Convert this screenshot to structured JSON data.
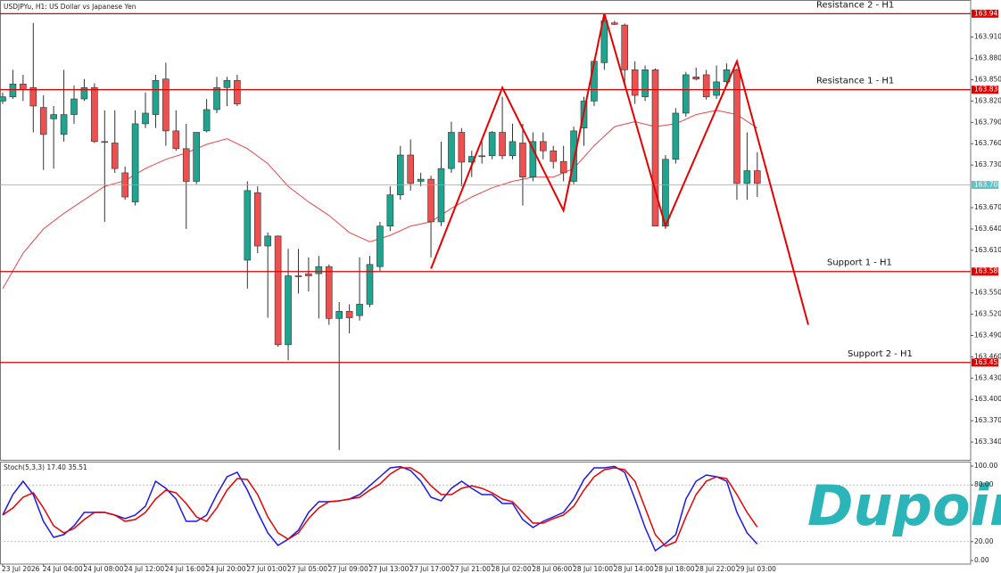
{
  "chart_data": [
    {
      "type": "candlestick",
      "title": "USDJPYu, H1:  US Dollar vs Japanese Yen",
      "categories": [
        "23 Jul 2026",
        null,
        null,
        null,
        "24 Jul 04:00",
        null,
        null,
        null,
        "24 Jul 08:00",
        null,
        null,
        null,
        "24 Jul 12:00",
        null,
        null,
        null,
        "24 Jul 16:00",
        null,
        null,
        null,
        "24 Jul 20:00",
        null,
        null,
        null,
        "27 Jul 01:00",
        null,
        null,
        null,
        "27 Jul 05:00",
        null,
        null,
        null,
        "27 Jul 09:00",
        null,
        null,
        null,
        "27 Jul 13:00",
        null,
        null,
        null,
        "27 Jul 17:00",
        null,
        null,
        null,
        "27 Jul 21:00",
        null,
        null,
        null,
        "28 Jul 02:00",
        null,
        null,
        null,
        "28 Jul 06:00",
        null,
        null,
        null,
        "28 Jul 10:00",
        null,
        null,
        null,
        "28 Jul 14:00",
        null,
        null,
        null,
        "28 Jul 18:00",
        null,
        null,
        null,
        "28 Jul 22:00",
        null,
        null,
        null,
        "29 Jul 03:00",
        null,
        null
      ],
      "open": [
        163.82,
        163.826,
        163.844,
        163.839,
        163.811,
        163.795,
        163.773,
        163.801,
        163.823,
        163.839,
        163.763,
        163.761,
        163.719,
        163.678,
        163.788,
        163.801,
        163.851,
        163.778,
        163.753,
        163.707,
        163.778,
        163.808,
        163.839,
        163.849,
        163.596,
        163.691,
        163.616,
        163.63,
        163.477,
        163.574,
        163.577,
        163.577,
        163.587,
        163.514,
        163.524,
        163.518,
        163.534,
        163.587,
        163.644,
        163.688,
        163.744,
        163.707,
        163.71,
        163.65,
        163.725,
        163.776,
        163.734,
        163.743,
        163.743,
        163.776,
        163.743,
        163.761,
        163.713,
        163.763,
        163.75,
        163.735,
        163.707,
        163.782,
        163.82,
        163.874,
        163.93,
        163.927,
        163.864,
        163.826,
        163.864,
        163.644,
        163.738,
        163.803,
        163.854,
        163.857,
        163.828,
        163.847,
        163.864,
        163.704,
        163.722
      ],
      "high": [
        163.832,
        163.864,
        163.857,
        163.93,
        163.828,
        163.813,
        163.864,
        163.842,
        163.851,
        163.845,
        163.807,
        163.807,
        163.728,
        163.807,
        163.832,
        163.857,
        163.874,
        163.807,
        163.788,
        163.776,
        163.823,
        163.854,
        163.854,
        163.857,
        163.707,
        163.7,
        163.635,
        163.631,
        163.612,
        163.612,
        163.6,
        163.602,
        163.59,
        163.537,
        163.534,
        163.6,
        163.602,
        163.65,
        163.7,
        163.757,
        163.766,
        163.719,
        163.715,
        163.763,
        163.791,
        163.782,
        163.75,
        163.763,
        163.778,
        163.826,
        163.788,
        163.788,
        163.776,
        163.776,
        163.757,
        163.757,
        163.784,
        163.826,
        163.879,
        163.939,
        163.933,
        163.929,
        163.876,
        163.87,
        163.866,
        163.744,
        163.81,
        163.861,
        163.867,
        163.864,
        163.87,
        163.873,
        163.866,
        163.776,
        163.748
      ],
      "low": [
        163.816,
        163.823,
        163.82,
        163.776,
        163.723,
        163.725,
        163.763,
        163.788,
        163.82,
        163.761,
        163.65,
        163.719,
        163.681,
        163.673,
        163.782,
        163.782,
        163.757,
        163.75,
        163.64,
        163.703,
        163.776,
        163.803,
        163.813,
        163.813,
        163.556,
        163.606,
        163.515,
        163.474,
        163.455,
        163.549,
        163.552,
        163.514,
        163.505,
        163.329,
        163.493,
        163.511,
        163.53,
        163.581,
        163.637,
        163.681,
        163.694,
        163.7,
        163.6,
        163.644,
        163.719,
        163.7,
        163.713,
        163.732,
        163.738,
        163.738,
        163.738,
        163.673,
        163.707,
        163.738,
        163.725,
        163.707,
        163.703,
        163.757,
        163.813,
        163.864,
        163.927,
        163.845,
        163.816,
        163.82,
        163.644,
        163.64,
        163.732,
        163.798,
        163.849,
        163.822,
        163.823,
        163.844,
        163.681,
        163.681,
        163.685
      ],
      "close": [
        163.826,
        163.844,
        163.836,
        163.813,
        163.773,
        163.801,
        163.801,
        163.823,
        163.839,
        163.763,
        163.762,
        163.725,
        163.685,
        163.788,
        163.803,
        163.849,
        163.778,
        163.753,
        163.707,
        163.776,
        163.808,
        163.839,
        163.849,
        163.816,
        163.694,
        163.616,
        163.63,
        163.477,
        163.574,
        163.573,
        163.574,
        163.587,
        163.514,
        163.524,
        163.515,
        163.534,
        163.59,
        163.644,
        163.688,
        163.744,
        163.704,
        163.71,
        163.65,
        163.725,
        163.776,
        163.734,
        163.742,
        163.742,
        163.776,
        163.743,
        163.763,
        163.713,
        163.763,
        163.75,
        163.735,
        163.719,
        163.778,
        163.82,
        163.876,
        163.933,
        163.928,
        163.864,
        163.828,
        163.864,
        163.644,
        163.738,
        163.803,
        163.857,
        163.851,
        163.826,
        163.847,
        163.864,
        163.704,
        163.722,
        163.704
      ],
      "up_color": "#1fa58f",
      "down_color": "#ee4f4f",
      "ylim": [
        163.315,
        163.961
      ],
      "yticks": [
        {
          "value": 163.34,
          "label": "163.340"
        },
        {
          "value": 163.37,
          "label": "163.370"
        },
        {
          "value": 163.4,
          "label": "163.400"
        },
        {
          "value": 163.43,
          "label": "163.430"
        },
        {
          "value": 163.46,
          "label": "163.460"
        },
        {
          "value": 163.49,
          "label": "163.490"
        },
        {
          "value": 163.52,
          "label": "163.520"
        },
        {
          "value": 163.55,
          "label": "163.550"
        },
        {
          "value": 163.61,
          "label": "163.610"
        },
        {
          "value": 163.64,
          "label": "163.640"
        },
        {
          "value": 163.67,
          "label": "163.670"
        },
        {
          "value": 163.73,
          "label": "163.730"
        },
        {
          "value": 163.76,
          "label": "163.760"
        },
        {
          "value": 163.79,
          "label": "163.790"
        },
        {
          "value": 163.82,
          "label": "163.820"
        },
        {
          "value": 163.85,
          "label": "163.850"
        },
        {
          "value": 163.88,
          "label": "163.880"
        },
        {
          "value": 163.91,
          "label": "163.910"
        }
      ],
      "ma": {
        "color": "#e8474a",
        "x": [
          0,
          2,
          4,
          6,
          8,
          10,
          12,
          14,
          16,
          18,
          20,
          22,
          24,
          26,
          28,
          30,
          32,
          34,
          36,
          38,
          40,
          42,
          44,
          46,
          48,
          50,
          52,
          54,
          56,
          58,
          60,
          62,
          64,
          66,
          68,
          70,
          72,
          74
        ],
        "values": [
          163.556,
          163.606,
          163.64,
          163.662,
          163.681,
          163.7,
          163.708,
          163.725,
          163.738,
          163.747,
          163.759,
          163.767,
          163.753,
          163.732,
          163.7,
          163.678,
          163.659,
          163.635,
          163.622,
          163.631,
          163.644,
          163.65,
          163.669,
          163.685,
          163.698,
          163.707,
          163.713,
          163.713,
          163.725,
          163.757,
          163.784,
          163.791,
          163.784,
          163.788,
          163.801,
          163.807,
          163.801,
          163.782
        ]
      },
      "zigzag": {
        "color": "#e80000",
        "x": [
          42,
          49,
          55,
          59,
          65,
          72,
          79
        ],
        "values": [
          163.584,
          163.839,
          163.666,
          163.943,
          163.644,
          163.876,
          163.505
        ]
      },
      "levels": [
        {
          "name": "Resistance 2 - H1",
          "value": 163.943,
          "color": "#e00000"
        },
        {
          "name": "Resistance 1 - H1",
          "value": 163.836,
          "color": "#e00000"
        },
        {
          "value": 163.702,
          "color": "#5ec4c8"
        },
        {
          "name": "Support 1 - H1",
          "value": 163.58,
          "value_label": "163.580",
          "color": "#e00000"
        },
        {
          "name": "Support 2 - H1",
          "value": 163.452,
          "color": "#e00000"
        }
      ]
    },
    {
      "type": "line",
      "title": "Stoch(5,3,3) 17.40 35.51",
      "ylim": [
        -3.8,
        103.8
      ],
      "yticks": [
        {
          "value": 100,
          "label": "100.00"
        },
        {
          "value": 80,
          "label": "80.00"
        },
        {
          "value": 20,
          "label": "20.00"
        },
        {
          "value": 0,
          "label": "0.00"
        }
      ],
      "levels": [
        80,
        20
      ],
      "series": [
        {
          "color": "#1a1ae6",
          "values": [
            48.1,
            69.8,
            84.0,
            69.8,
            41.5,
            24.5,
            27.4,
            36.8,
            50.9,
            50.9,
            50.9,
            48.1,
            44.3,
            48.1,
            57.5,
            84.0,
            76.4,
            65.1,
            41.5,
            41.5,
            48.1,
            69.8,
            88.7,
            93.4,
            74.5,
            50.9,
            29.2,
            16.0,
            22.6,
            32.1,
            50.9,
            62.3,
            62.3,
            63.2,
            65.1,
            69.8,
            79.2,
            88.7,
            98.1,
            99.5,
            95.3,
            84.0,
            67.0,
            63.2,
            76.4,
            84.0,
            76.4,
            69.8,
            69.8,
            60.4,
            60.4,
            43.4,
            34.9,
            41.5,
            46.2,
            50.9,
            65.1,
            85.8,
            98.1,
            98.1,
            99.6,
            93.4,
            65.1,
            34.9,
            10.4,
            17.9,
            27.4,
            65.1,
            84.0,
            90.6,
            88.7,
            84.0,
            50.9,
            29.2,
            17.4
          ]
        },
        {
          "color": "#e80000",
          "values": [
            48.1,
            55.7,
            67.0,
            71.7,
            55.7,
            36.8,
            29.2,
            34.0,
            43.4,
            50.9,
            50.9,
            48.1,
            41.5,
            43.4,
            50.9,
            65.1,
            74.5,
            71.7,
            60.4,
            46.2,
            41.5,
            55.7,
            74.5,
            86.8,
            85.8,
            69.8,
            46.2,
            29.2,
            22.6,
            29.2,
            44.3,
            55.7,
            62.3,
            63.2,
            65.1,
            67.0,
            74.5,
            81.1,
            91.5,
            98.1,
            98.1,
            91.5,
            79.2,
            69.8,
            69.8,
            76.4,
            79.2,
            76.4,
            71.7,
            65.1,
            62.3,
            50.9,
            39.6,
            39.6,
            44.3,
            48.1,
            57.5,
            74.5,
            88.7,
            96.2,
            98.1,
            96.2,
            84.0,
            55.7,
            27.4,
            15.1,
            19.8,
            46.2,
            69.8,
            84.0,
            88.7,
            86.8,
            69.8,
            50.9,
            35.51
          ]
        }
      ]
    }
  ],
  "watermark": "Dupoin"
}
